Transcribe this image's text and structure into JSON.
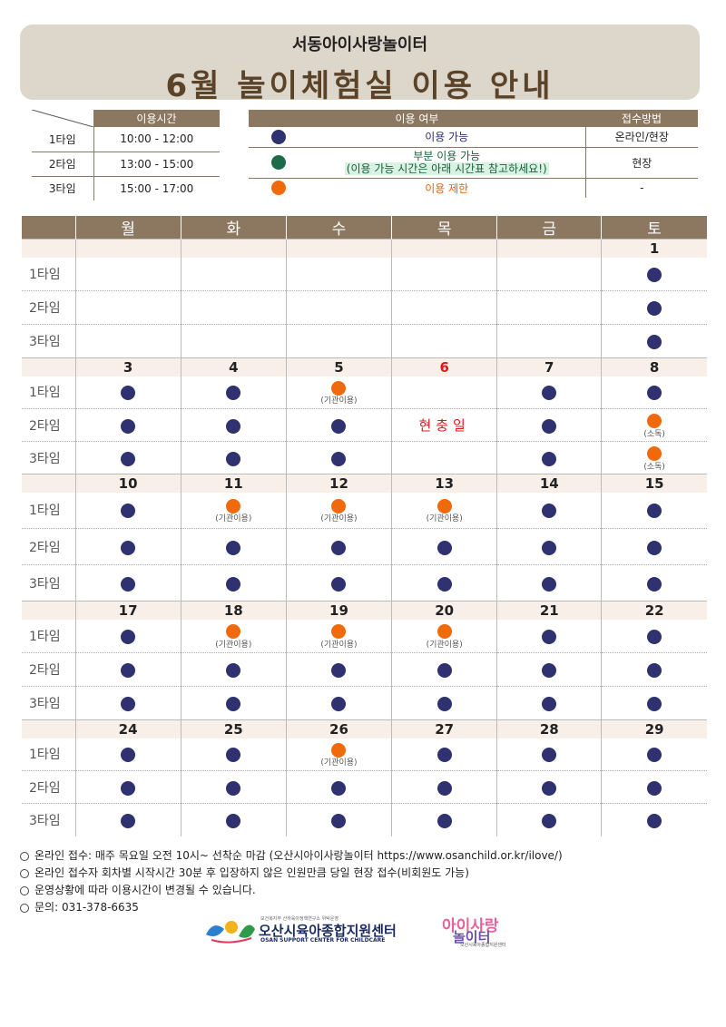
{
  "header": {
    "subtitle": "서동아이사랑놀이터",
    "title": "6월 놀이체험실 이용 안내"
  },
  "time_table": {
    "header": "이용시간",
    "rows": [
      {
        "label": "1타임",
        "time": "10:00 - 12:00"
      },
      {
        "label": "2타임",
        "time": "13:00 - 15:00"
      },
      {
        "label": "3타임",
        "time": "15:00 - 17:00"
      }
    ]
  },
  "legend_table": {
    "header_usage": "이용 여부",
    "header_method": "접수방법",
    "rows": [
      {
        "color": "navy",
        "text": "이용 가능",
        "method": "온라인/현장"
      },
      {
        "color": "green",
        "text": "부분 이용 가능",
        "note": "(이용 가능 시간은 아래 시간표 참고하세요!)",
        "method": "현장"
      },
      {
        "color": "orange",
        "text": "이용 제한",
        "method": "-"
      }
    ]
  },
  "calendar": {
    "days": [
      "월",
      "화",
      "수",
      "목",
      "금",
      "토"
    ],
    "slot_labels": [
      "1타임",
      "2타임",
      "3타임"
    ],
    "weeks": [
      {
        "dates": [
          "",
          "",
          "",
          "",
          "",
          "1"
        ],
        "slots": [
          [
            null,
            null,
            null,
            null,
            null,
            {
              "dot": "navy"
            }
          ],
          [
            null,
            null,
            null,
            null,
            null,
            {
              "dot": "navy"
            }
          ],
          [
            null,
            null,
            null,
            null,
            null,
            {
              "dot": "navy"
            }
          ]
        ]
      },
      {
        "dates": [
          "3",
          "4",
          "5",
          "6",
          "7",
          "8"
        ],
        "red_date_index": 3,
        "holiday_text": "현충일",
        "holiday_col": 3,
        "slots": [
          [
            {
              "dot": "navy"
            },
            {
              "dot": "navy"
            },
            {
              "dot": "orange",
              "note": "(기관이용)"
            },
            null,
            {
              "dot": "navy"
            },
            {
              "dot": "navy"
            }
          ],
          [
            {
              "dot": "navy"
            },
            {
              "dot": "navy"
            },
            {
              "dot": "navy"
            },
            null,
            {
              "dot": "navy"
            },
            {
              "dot": "orange",
              "note": "(소독)"
            }
          ],
          [
            {
              "dot": "navy"
            },
            {
              "dot": "navy"
            },
            {
              "dot": "navy"
            },
            null,
            {
              "dot": "navy"
            },
            {
              "dot": "orange",
              "note": "(소독)"
            }
          ]
        ]
      },
      {
        "dates": [
          "10",
          "11",
          "12",
          "13",
          "14",
          "15"
        ],
        "slots": [
          [
            {
              "dot": "navy"
            },
            {
              "dot": "orange",
              "note": "(기관이용)"
            },
            {
              "dot": "orange",
              "note": "(기관이용)"
            },
            {
              "dot": "orange",
              "note": "(기관이용)"
            },
            {
              "dot": "navy"
            },
            {
              "dot": "navy"
            }
          ],
          [
            {
              "dot": "navy"
            },
            {
              "dot": "navy"
            },
            {
              "dot": "navy"
            },
            {
              "dot": "navy"
            },
            {
              "dot": "navy"
            },
            {
              "dot": "navy"
            }
          ],
          [
            {
              "dot": "navy"
            },
            {
              "dot": "navy"
            },
            {
              "dot": "navy"
            },
            {
              "dot": "navy"
            },
            {
              "dot": "navy"
            },
            {
              "dot": "navy"
            }
          ]
        ]
      },
      {
        "dates": [
          "17",
          "18",
          "19",
          "20",
          "21",
          "22"
        ],
        "slots": [
          [
            {
              "dot": "navy"
            },
            {
              "dot": "orange",
              "note": "(기관이용)"
            },
            {
              "dot": "orange",
              "note": "(기관이용)"
            },
            {
              "dot": "orange",
              "note": "(기관이용)"
            },
            {
              "dot": "navy"
            },
            {
              "dot": "navy"
            }
          ],
          [
            {
              "dot": "navy"
            },
            {
              "dot": "navy"
            },
            {
              "dot": "navy"
            },
            {
              "dot": "navy"
            },
            {
              "dot": "navy"
            },
            {
              "dot": "navy"
            }
          ],
          [
            {
              "dot": "navy"
            },
            {
              "dot": "navy"
            },
            {
              "dot": "navy"
            },
            {
              "dot": "navy"
            },
            {
              "dot": "navy"
            },
            {
              "dot": "navy"
            }
          ]
        ]
      },
      {
        "dates": [
          "24",
          "25",
          "26",
          "27",
          "28",
          "29"
        ],
        "slots": [
          [
            {
              "dot": "navy"
            },
            {
              "dot": "navy"
            },
            {
              "dot": "orange",
              "note": "(기관이용)"
            },
            {
              "dot": "navy"
            },
            {
              "dot": "navy"
            },
            {
              "dot": "navy"
            }
          ],
          [
            {
              "dot": "navy"
            },
            {
              "dot": "navy"
            },
            {
              "dot": "navy"
            },
            {
              "dot": "navy"
            },
            {
              "dot": "navy"
            },
            {
              "dot": "navy"
            }
          ],
          [
            {
              "dot": "navy"
            },
            {
              "dot": "navy"
            },
            {
              "dot": "navy"
            },
            {
              "dot": "navy"
            },
            {
              "dot": "navy"
            },
            {
              "dot": "navy"
            }
          ]
        ]
      }
    ]
  },
  "notes": [
    "온라인 접수: 매주 목요일 오전 10시~ 선착순 마감 (오산시아이사랑놀이터 https://www.osanchild.or.kr/ilove/)",
    "온라인 접수자 회차별 시작시간 30분 후 입장하지 않은 인원만큼 당일 현장 접수(비회원도 가능)",
    "운영상황에 따라 이용시간이 변경될 수 있습니다.",
    "문의: 031-378-6635"
  ],
  "logos": {
    "center_name": "오산시육아종합지원센터",
    "center_en": "OSAN SUPPORT CENTER FOR CHILDCARE",
    "center_tiny": "보건복지부 산하육아정책연구소 위탁운영",
    "playground_line1": "아이사랑",
    "playground_line2": "놀이터",
    "playground_tiny": "오산시육아종합지원센터"
  },
  "colors": {
    "navy": "#2f3170",
    "green": "#1e6b4a",
    "orange": "#f06a0c",
    "brown": "#8c7760"
  }
}
